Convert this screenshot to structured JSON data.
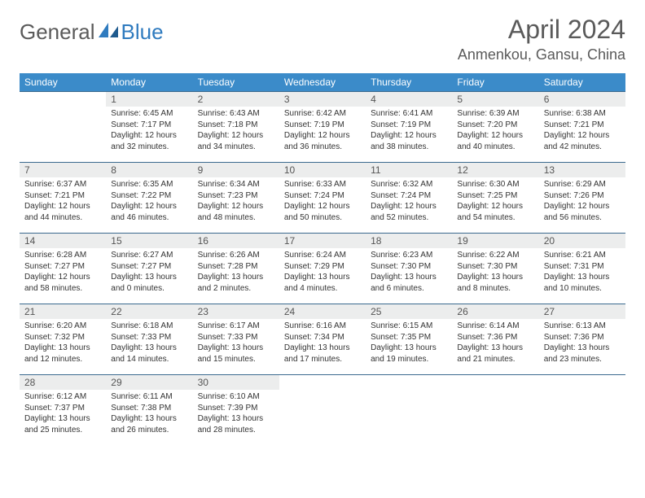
{
  "brand": {
    "part1": "General",
    "part2": "Blue"
  },
  "title": "April 2024",
  "location": "Anmenkou, Gansu, China",
  "colors": {
    "header_bg": "#3b8bc9",
    "header_text": "#ffffff",
    "daynum_bg": "#eceded",
    "border": "#3b6a8f",
    "brand_blue": "#2f7bbf",
    "brand_gray": "#5a5a5a"
  },
  "weekdays": [
    "Sunday",
    "Monday",
    "Tuesday",
    "Wednesday",
    "Thursday",
    "Friday",
    "Saturday"
  ],
  "weeks": [
    [
      {
        "n": "",
        "sr": "",
        "ss": "",
        "d1": "",
        "d2": ""
      },
      {
        "n": "1",
        "sr": "Sunrise: 6:45 AM",
        "ss": "Sunset: 7:17 PM",
        "d1": "Daylight: 12 hours",
        "d2": "and 32 minutes."
      },
      {
        "n": "2",
        "sr": "Sunrise: 6:43 AM",
        "ss": "Sunset: 7:18 PM",
        "d1": "Daylight: 12 hours",
        "d2": "and 34 minutes."
      },
      {
        "n": "3",
        "sr": "Sunrise: 6:42 AM",
        "ss": "Sunset: 7:19 PM",
        "d1": "Daylight: 12 hours",
        "d2": "and 36 minutes."
      },
      {
        "n": "4",
        "sr": "Sunrise: 6:41 AM",
        "ss": "Sunset: 7:19 PM",
        "d1": "Daylight: 12 hours",
        "d2": "and 38 minutes."
      },
      {
        "n": "5",
        "sr": "Sunrise: 6:39 AM",
        "ss": "Sunset: 7:20 PM",
        "d1": "Daylight: 12 hours",
        "d2": "and 40 minutes."
      },
      {
        "n": "6",
        "sr": "Sunrise: 6:38 AM",
        "ss": "Sunset: 7:21 PM",
        "d1": "Daylight: 12 hours",
        "d2": "and 42 minutes."
      }
    ],
    [
      {
        "n": "7",
        "sr": "Sunrise: 6:37 AM",
        "ss": "Sunset: 7:21 PM",
        "d1": "Daylight: 12 hours",
        "d2": "and 44 minutes."
      },
      {
        "n": "8",
        "sr": "Sunrise: 6:35 AM",
        "ss": "Sunset: 7:22 PM",
        "d1": "Daylight: 12 hours",
        "d2": "and 46 minutes."
      },
      {
        "n": "9",
        "sr": "Sunrise: 6:34 AM",
        "ss": "Sunset: 7:23 PM",
        "d1": "Daylight: 12 hours",
        "d2": "and 48 minutes."
      },
      {
        "n": "10",
        "sr": "Sunrise: 6:33 AM",
        "ss": "Sunset: 7:24 PM",
        "d1": "Daylight: 12 hours",
        "d2": "and 50 minutes."
      },
      {
        "n": "11",
        "sr": "Sunrise: 6:32 AM",
        "ss": "Sunset: 7:24 PM",
        "d1": "Daylight: 12 hours",
        "d2": "and 52 minutes."
      },
      {
        "n": "12",
        "sr": "Sunrise: 6:30 AM",
        "ss": "Sunset: 7:25 PM",
        "d1": "Daylight: 12 hours",
        "d2": "and 54 minutes."
      },
      {
        "n": "13",
        "sr": "Sunrise: 6:29 AM",
        "ss": "Sunset: 7:26 PM",
        "d1": "Daylight: 12 hours",
        "d2": "and 56 minutes."
      }
    ],
    [
      {
        "n": "14",
        "sr": "Sunrise: 6:28 AM",
        "ss": "Sunset: 7:27 PM",
        "d1": "Daylight: 12 hours",
        "d2": "and 58 minutes."
      },
      {
        "n": "15",
        "sr": "Sunrise: 6:27 AM",
        "ss": "Sunset: 7:27 PM",
        "d1": "Daylight: 13 hours",
        "d2": "and 0 minutes."
      },
      {
        "n": "16",
        "sr": "Sunrise: 6:26 AM",
        "ss": "Sunset: 7:28 PM",
        "d1": "Daylight: 13 hours",
        "d2": "and 2 minutes."
      },
      {
        "n": "17",
        "sr": "Sunrise: 6:24 AM",
        "ss": "Sunset: 7:29 PM",
        "d1": "Daylight: 13 hours",
        "d2": "and 4 minutes."
      },
      {
        "n": "18",
        "sr": "Sunrise: 6:23 AM",
        "ss": "Sunset: 7:30 PM",
        "d1": "Daylight: 13 hours",
        "d2": "and 6 minutes."
      },
      {
        "n": "19",
        "sr": "Sunrise: 6:22 AM",
        "ss": "Sunset: 7:30 PM",
        "d1": "Daylight: 13 hours",
        "d2": "and 8 minutes."
      },
      {
        "n": "20",
        "sr": "Sunrise: 6:21 AM",
        "ss": "Sunset: 7:31 PM",
        "d1": "Daylight: 13 hours",
        "d2": "and 10 minutes."
      }
    ],
    [
      {
        "n": "21",
        "sr": "Sunrise: 6:20 AM",
        "ss": "Sunset: 7:32 PM",
        "d1": "Daylight: 13 hours",
        "d2": "and 12 minutes."
      },
      {
        "n": "22",
        "sr": "Sunrise: 6:18 AM",
        "ss": "Sunset: 7:33 PM",
        "d1": "Daylight: 13 hours",
        "d2": "and 14 minutes."
      },
      {
        "n": "23",
        "sr": "Sunrise: 6:17 AM",
        "ss": "Sunset: 7:33 PM",
        "d1": "Daylight: 13 hours",
        "d2": "and 15 minutes."
      },
      {
        "n": "24",
        "sr": "Sunrise: 6:16 AM",
        "ss": "Sunset: 7:34 PM",
        "d1": "Daylight: 13 hours",
        "d2": "and 17 minutes."
      },
      {
        "n": "25",
        "sr": "Sunrise: 6:15 AM",
        "ss": "Sunset: 7:35 PM",
        "d1": "Daylight: 13 hours",
        "d2": "and 19 minutes."
      },
      {
        "n": "26",
        "sr": "Sunrise: 6:14 AM",
        "ss": "Sunset: 7:36 PM",
        "d1": "Daylight: 13 hours",
        "d2": "and 21 minutes."
      },
      {
        "n": "27",
        "sr": "Sunrise: 6:13 AM",
        "ss": "Sunset: 7:36 PM",
        "d1": "Daylight: 13 hours",
        "d2": "and 23 minutes."
      }
    ],
    [
      {
        "n": "28",
        "sr": "Sunrise: 6:12 AM",
        "ss": "Sunset: 7:37 PM",
        "d1": "Daylight: 13 hours",
        "d2": "and 25 minutes."
      },
      {
        "n": "29",
        "sr": "Sunrise: 6:11 AM",
        "ss": "Sunset: 7:38 PM",
        "d1": "Daylight: 13 hours",
        "d2": "and 26 minutes."
      },
      {
        "n": "30",
        "sr": "Sunrise: 6:10 AM",
        "ss": "Sunset: 7:39 PM",
        "d1": "Daylight: 13 hours",
        "d2": "and 28 minutes."
      },
      {
        "n": "",
        "sr": "",
        "ss": "",
        "d1": "",
        "d2": ""
      },
      {
        "n": "",
        "sr": "",
        "ss": "",
        "d1": "",
        "d2": ""
      },
      {
        "n": "",
        "sr": "",
        "ss": "",
        "d1": "",
        "d2": ""
      },
      {
        "n": "",
        "sr": "",
        "ss": "",
        "d1": "",
        "d2": ""
      }
    ]
  ]
}
